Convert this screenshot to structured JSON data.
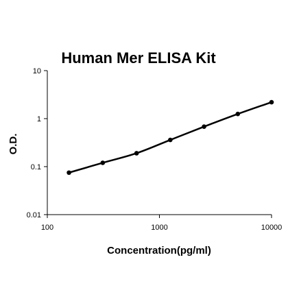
{
  "chart_data": {
    "type": "line",
    "title": "Human Mer ELISA Kit",
    "xlabel": "Concentration(pg/ml)",
    "ylabel": "O.D.",
    "xscale": "log",
    "yscale": "log",
    "xlim": [
      100,
      10000
    ],
    "ylim": [
      0.01,
      10
    ],
    "x_ticks": [
      100,
      1000,
      10000
    ],
    "x_tick_labels": [
      "100",
      "1000",
      "10000"
    ],
    "y_ticks": [
      0.01,
      0.1,
      1,
      10
    ],
    "y_tick_labels": [
      "0.01",
      "0.1",
      "1",
      "10"
    ],
    "grid": false,
    "series": [
      {
        "x": [
          156,
          312,
          625,
          1250,
          2500,
          5000,
          10000
        ],
        "y": [
          0.075,
          0.12,
          0.19,
          0.36,
          0.68,
          1.25,
          2.2
        ]
      }
    ]
  }
}
